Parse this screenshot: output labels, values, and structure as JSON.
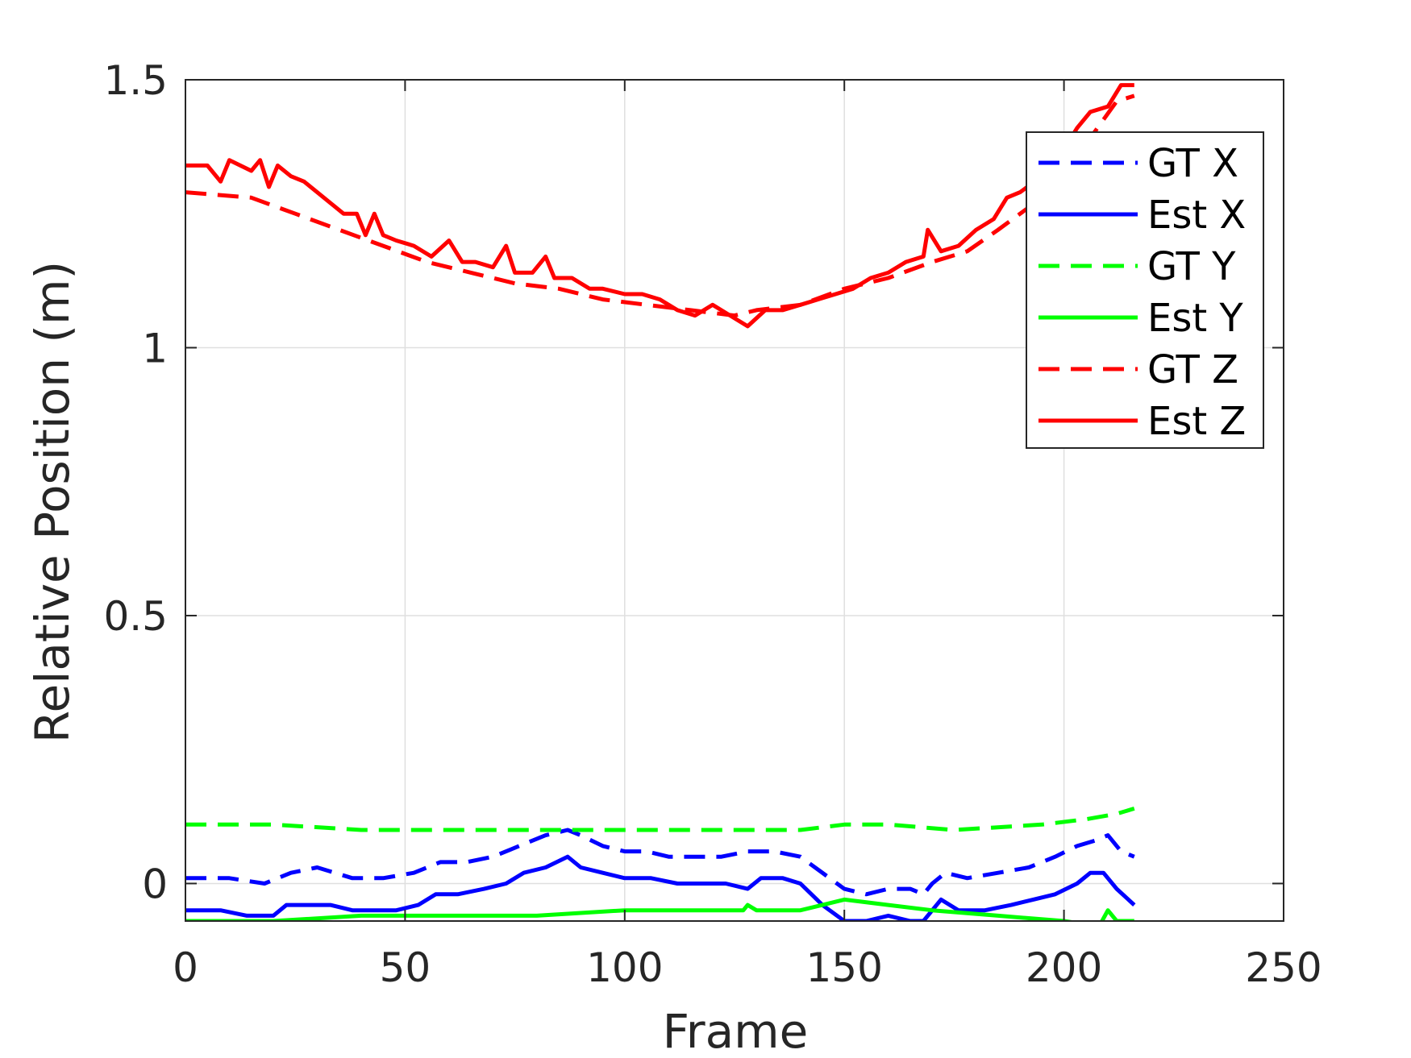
{
  "chart_data": {
    "type": "line",
    "xlabel": "Frame",
    "ylabel": "Relative Position (m)",
    "xlim": [
      0,
      250
    ],
    "ylim": [
      -0.07,
      1.5
    ],
    "x_ticks": [
      0,
      50,
      100,
      150,
      200,
      250
    ],
    "y_ticks": [
      0,
      0.5,
      1,
      1.5
    ],
    "x_tick_labels": [
      "0",
      "50",
      "100",
      "150",
      "200",
      "250"
    ],
    "y_tick_labels": [
      "0",
      "0.5",
      "1",
      "1.5"
    ],
    "grid": true,
    "legend_position": "top-right",
    "series": [
      {
        "name": "GT X",
        "color": "#0000ff",
        "style": "dashed",
        "points": [
          [
            0,
            0.01
          ],
          [
            10,
            0.01
          ],
          [
            18,
            0.0
          ],
          [
            24,
            0.02
          ],
          [
            30,
            0.03
          ],
          [
            38,
            0.01
          ],
          [
            45,
            0.01
          ],
          [
            52,
            0.02
          ],
          [
            58,
            0.04
          ],
          [
            64,
            0.04
          ],
          [
            70,
            0.05
          ],
          [
            76,
            0.07
          ],
          [
            82,
            0.09
          ],
          [
            87,
            0.1
          ],
          [
            90,
            0.09
          ],
          [
            95,
            0.07
          ],
          [
            100,
            0.06
          ],
          [
            105,
            0.06
          ],
          [
            110,
            0.05
          ],
          [
            116,
            0.05
          ],
          [
            122,
            0.05
          ],
          [
            128,
            0.06
          ],
          [
            134,
            0.06
          ],
          [
            140,
            0.05
          ],
          [
            145,
            0.02
          ],
          [
            150,
            -0.01
          ],
          [
            155,
            -0.02
          ],
          [
            160,
            -0.01
          ],
          [
            165,
            -0.01
          ],
          [
            168,
            -0.02
          ],
          [
            170,
            0.0
          ],
          [
            173,
            0.02
          ],
          [
            178,
            0.01
          ],
          [
            185,
            0.02
          ],
          [
            192,
            0.03
          ],
          [
            198,
            0.05
          ],
          [
            203,
            0.07
          ],
          [
            207,
            0.08
          ],
          [
            210,
            0.09
          ],
          [
            213,
            0.06
          ],
          [
            216,
            0.05
          ]
        ]
      },
      {
        "name": "Est X",
        "color": "#0000ff",
        "style": "solid",
        "points": [
          [
            0,
            -0.05
          ],
          [
            8,
            -0.05
          ],
          [
            14,
            -0.06
          ],
          [
            20,
            -0.06
          ],
          [
            23,
            -0.04
          ],
          [
            28,
            -0.04
          ],
          [
            33,
            -0.04
          ],
          [
            38,
            -0.05
          ],
          [
            43,
            -0.05
          ],
          [
            48,
            -0.05
          ],
          [
            53,
            -0.04
          ],
          [
            57,
            -0.02
          ],
          [
            62,
            -0.02
          ],
          [
            68,
            -0.01
          ],
          [
            73,
            0.0
          ],
          [
            77,
            0.02
          ],
          [
            82,
            0.03
          ],
          [
            87,
            0.05
          ],
          [
            90,
            0.03
          ],
          [
            95,
            0.02
          ],
          [
            100,
            0.01
          ],
          [
            106,
            0.01
          ],
          [
            112,
            0.0
          ],
          [
            118,
            0.0
          ],
          [
            123,
            0.0
          ],
          [
            128,
            -0.01
          ],
          [
            131,
            0.01
          ],
          [
            136,
            0.01
          ],
          [
            140,
            0.0
          ],
          [
            145,
            -0.04
          ],
          [
            150,
            -0.07
          ],
          [
            155,
            -0.07
          ],
          [
            160,
            -0.06
          ],
          [
            165,
            -0.07
          ],
          [
            168,
            -0.07
          ],
          [
            172,
            -0.03
          ],
          [
            176,
            -0.05
          ],
          [
            182,
            -0.05
          ],
          [
            188,
            -0.04
          ],
          [
            193,
            -0.03
          ],
          [
            198,
            -0.02
          ],
          [
            203,
            0.0
          ],
          [
            206,
            0.02
          ],
          [
            209,
            0.02
          ],
          [
            212,
            -0.01
          ],
          [
            216,
            -0.04
          ]
        ]
      },
      {
        "name": "GT Y",
        "color": "#00ff00",
        "style": "dashed",
        "points": [
          [
            0,
            0.11
          ],
          [
            20,
            0.11
          ],
          [
            40,
            0.1
          ],
          [
            60,
            0.1
          ],
          [
            80,
            0.1
          ],
          [
            100,
            0.1
          ],
          [
            120,
            0.1
          ],
          [
            140,
            0.1
          ],
          [
            150,
            0.11
          ],
          [
            160,
            0.11
          ],
          [
            175,
            0.1
          ],
          [
            195,
            0.11
          ],
          [
            205,
            0.12
          ],
          [
            212,
            0.13
          ],
          [
            216,
            0.14
          ]
        ]
      },
      {
        "name": "Est Y",
        "color": "#00ff00",
        "style": "solid",
        "points": [
          [
            0,
            -0.07
          ],
          [
            20,
            -0.07
          ],
          [
            40,
            -0.06
          ],
          [
            60,
            -0.06
          ],
          [
            80,
            -0.06
          ],
          [
            100,
            -0.05
          ],
          [
            120,
            -0.05
          ],
          [
            127,
            -0.05
          ],
          [
            128,
            -0.04
          ],
          [
            130,
            -0.05
          ],
          [
            140,
            -0.05
          ],
          [
            150,
            -0.03
          ],
          [
            160,
            -0.04
          ],
          [
            170,
            -0.05
          ],
          [
            185,
            -0.06
          ],
          [
            200,
            -0.07
          ],
          [
            208,
            -0.08
          ],
          [
            210,
            -0.05
          ],
          [
            212,
            -0.07
          ],
          [
            216,
            -0.07
          ]
        ]
      },
      {
        "name": "GT Z",
        "color": "#ff0000",
        "style": "dashed",
        "points": [
          [
            0,
            1.29
          ],
          [
            15,
            1.28
          ],
          [
            25,
            1.25
          ],
          [
            35,
            1.22
          ],
          [
            45,
            1.19
          ],
          [
            55,
            1.16
          ],
          [
            65,
            1.14
          ],
          [
            75,
            1.12
          ],
          [
            85,
            1.11
          ],
          [
            95,
            1.09
          ],
          [
            105,
            1.08
          ],
          [
            115,
            1.07
          ],
          [
            125,
            1.06
          ],
          [
            130,
            1.07
          ],
          [
            140,
            1.08
          ],
          [
            150,
            1.11
          ],
          [
            160,
            1.13
          ],
          [
            170,
            1.16
          ],
          [
            178,
            1.18
          ],
          [
            185,
            1.22
          ],
          [
            195,
            1.28
          ],
          [
            205,
            1.38
          ],
          [
            212,
            1.46
          ],
          [
            216,
            1.47
          ]
        ]
      },
      {
        "name": "Est Z",
        "color": "#ff0000",
        "style": "solid",
        "points": [
          [
            0,
            1.34
          ],
          [
            5,
            1.34
          ],
          [
            8,
            1.31
          ],
          [
            10,
            1.35
          ],
          [
            15,
            1.33
          ],
          [
            17,
            1.35
          ],
          [
            19,
            1.3
          ],
          [
            21,
            1.34
          ],
          [
            24,
            1.32
          ],
          [
            27,
            1.31
          ],
          [
            30,
            1.29
          ],
          [
            33,
            1.27
          ],
          [
            36,
            1.25
          ],
          [
            39,
            1.25
          ],
          [
            41,
            1.21
          ],
          [
            43,
            1.25
          ],
          [
            45,
            1.21
          ],
          [
            48,
            1.2
          ],
          [
            52,
            1.19
          ],
          [
            56,
            1.17
          ],
          [
            60,
            1.2
          ],
          [
            63,
            1.16
          ],
          [
            66,
            1.16
          ],
          [
            70,
            1.15
          ],
          [
            73,
            1.19
          ],
          [
            75,
            1.14
          ],
          [
            79,
            1.14
          ],
          [
            82,
            1.17
          ],
          [
            84,
            1.13
          ],
          [
            88,
            1.13
          ],
          [
            92,
            1.11
          ],
          [
            95,
            1.11
          ],
          [
            100,
            1.1
          ],
          [
            104,
            1.1
          ],
          [
            108,
            1.09
          ],
          [
            112,
            1.07
          ],
          [
            116,
            1.06
          ],
          [
            120,
            1.08
          ],
          [
            124,
            1.06
          ],
          [
            128,
            1.04
          ],
          [
            132,
            1.07
          ],
          [
            136,
            1.07
          ],
          [
            140,
            1.08
          ],
          [
            144,
            1.09
          ],
          [
            148,
            1.1
          ],
          [
            152,
            1.11
          ],
          [
            156,
            1.13
          ],
          [
            160,
            1.14
          ],
          [
            164,
            1.16
          ],
          [
            168,
            1.17
          ],
          [
            169,
            1.22
          ],
          [
            172,
            1.18
          ],
          [
            176,
            1.19
          ],
          [
            180,
            1.22
          ],
          [
            184,
            1.24
          ],
          [
            187,
            1.28
          ],
          [
            190,
            1.29
          ],
          [
            195,
            1.32
          ],
          [
            200,
            1.37
          ],
          [
            203,
            1.41
          ],
          [
            206,
            1.44
          ],
          [
            210,
            1.45
          ],
          [
            213,
            1.49
          ],
          [
            216,
            1.49
          ]
        ]
      }
    ]
  }
}
